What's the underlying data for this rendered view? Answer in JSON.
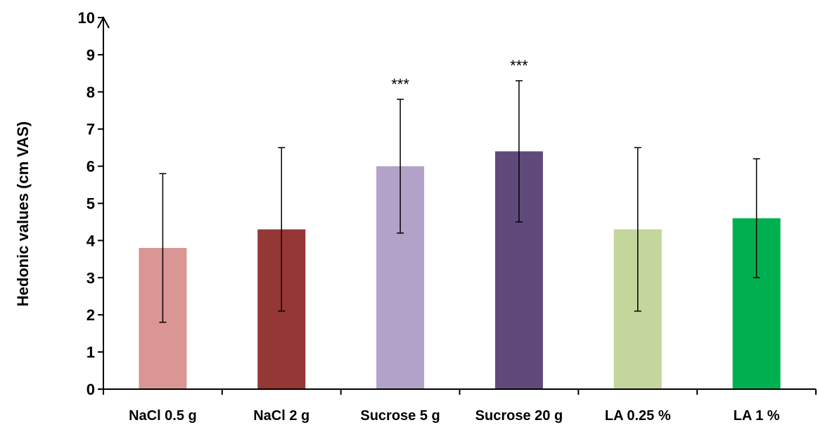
{
  "chart_data": {
    "type": "bar",
    "title": "",
    "xlabel": "",
    "ylabel": "Hedonic values (cm VAS)",
    "ylim": [
      0,
      10
    ],
    "yticks": [
      "0",
      "1",
      "2",
      "3",
      "4",
      "5",
      "6",
      "7",
      "8",
      "9",
      "10"
    ],
    "grid": false,
    "legend": "none",
    "categories": [
      "NaCl 0.5 g",
      "NaCl 2 g",
      "Sucrose 5 g",
      "Sucrose 20 g",
      "LA 0.25 %",
      "LA 1 %"
    ],
    "values": [
      3.8,
      4.3,
      6.0,
      6.4,
      4.3,
      4.6
    ],
    "error_low": [
      1.8,
      2.1,
      4.2,
      4.5,
      2.1,
      3.0
    ],
    "error_high": [
      5.8,
      6.5,
      7.8,
      8.3,
      6.5,
      6.2
    ],
    "colors": [
      "#d99694",
      "#953735",
      "#b3a2c7",
      "#604a7b",
      "#c3d69b",
      "#00b050"
    ],
    "annotations": [
      "",
      "",
      "***",
      "***",
      "",
      ""
    ]
  }
}
